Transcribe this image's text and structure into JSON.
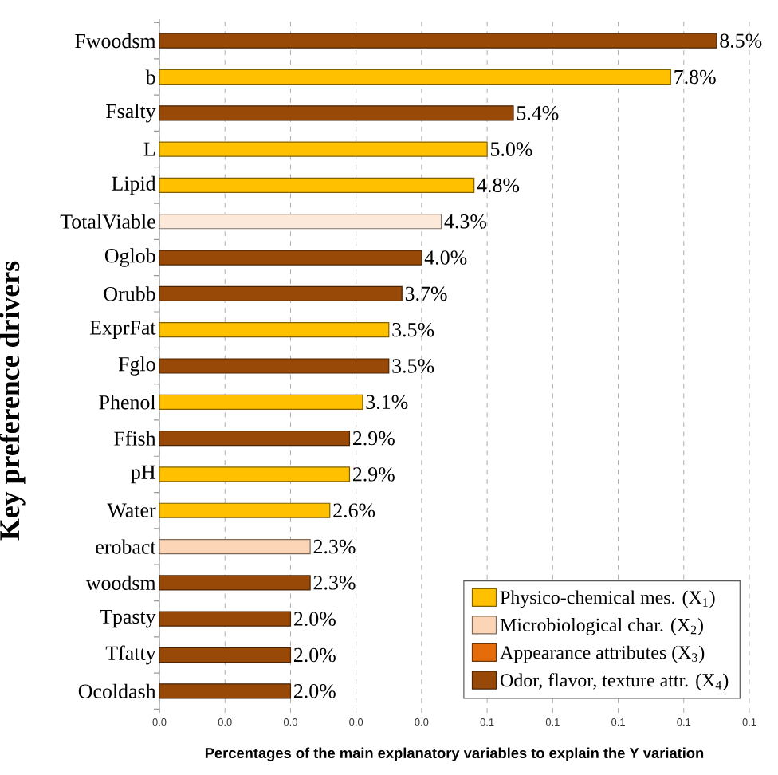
{
  "chart_data": {
    "type": "bar",
    "orientation": "horizontal",
    "xlabel": "Percentages of the main explanatory variables to explain the Y variation",
    "ylabel": "Key preference drivers",
    "categories": [
      "Fwoodsm",
      "b",
      "Fsalty",
      "L",
      "Lipid",
      "TotalViable",
      "Oglob",
      "Orubb",
      "ExprFat",
      "Fglo",
      "Phenol",
      "Ffish",
      "pH",
      "Water",
      "erobact",
      "woodsm",
      "Tpasty",
      "Tfatty",
      "Ocoldash"
    ],
    "series": [
      {
        "name": "Physico-chemical mes. (X$_{1}$)",
        "color": "#ffc000",
        "values": [
          null,
          0.078,
          null,
          0.05,
          0.048,
          null,
          null,
          null,
          0.035,
          null,
          0.031,
          null,
          0.029,
          0.026,
          null,
          null,
          null,
          null,
          null
        ],
        "value_labels": [
          null,
          "7.8%",
          null,
          "5.0%",
          "4.8%",
          null,
          null,
          null,
          "3.5%",
          null,
          "3.1%",
          null,
          "2.9%",
          "2.6%",
          null,
          null,
          null,
          null,
          null
        ]
      },
      {
        "name": "Microbiological char. (X$_{2}$)",
        "color": "#fbd5b5",
        "colors": [
          null,
          null,
          null,
          null,
          null,
          "#fde9d9",
          null,
          null,
          null,
          null,
          null,
          null,
          null,
          null,
          "#fbd5b5",
          null,
          null,
          null,
          null
        ],
        "values": [
          null,
          null,
          null,
          null,
          null,
          0.043,
          null,
          null,
          null,
          null,
          null,
          null,
          null,
          null,
          0.023,
          null,
          null,
          null,
          null
        ],
        "value_labels": [
          null,
          null,
          null,
          null,
          null,
          "4.3%",
          null,
          null,
          null,
          null,
          null,
          null,
          null,
          null,
          "2.3%",
          null,
          null,
          null,
          null
        ]
      },
      {
        "name": "Appearance attributes (X$_{3}$)",
        "color": "#e46c0a",
        "values": [
          null,
          null,
          null,
          null,
          null,
          null,
          null,
          null,
          null,
          null,
          null,
          null,
          null,
          null,
          null,
          null,
          null,
          null,
          null
        ]
      },
      {
        "name": "Odor, flavor, texture attr. (X$_{4}$)",
        "color": "#984807",
        "values": [
          0.085,
          null,
          0.054,
          null,
          null,
          null,
          0.04,
          0.037,
          null,
          0.035,
          null,
          0.029,
          null,
          null,
          null,
          0.023,
          0.02,
          0.02,
          0.02
        ],
        "value_labels": [
          "8.5%",
          null,
          "5.4%",
          null,
          null,
          null,
          "4.0%",
          "3.7%",
          null,
          "3.5%",
          null,
          "2.9%",
          null,
          null,
          null,
          "2.3%",
          "2.0%",
          "2.0%",
          "2.0%"
        ]
      }
    ],
    "xlim": [
      0,
      0.09
    ],
    "xticks": [
      {
        "value": 0,
        "label": "0.0"
      },
      {
        "value": 0.01,
        "label": "0.0"
      },
      {
        "value": 0.02,
        "label": "0.0"
      },
      {
        "value": 0.03,
        "label": "0.0"
      },
      {
        "value": 0.04,
        "label": "0.0"
      },
      {
        "value": 0.05,
        "label": "0.1"
      },
      {
        "value": 0.06,
        "label": "0.1"
      },
      {
        "value": 0.07,
        "label": "0.1"
      },
      {
        "value": 0.08,
        "label": "0.1"
      },
      {
        "value": 0.09,
        "label": "0.1"
      }
    ],
    "grid": "x",
    "legend": "bottom right"
  }
}
